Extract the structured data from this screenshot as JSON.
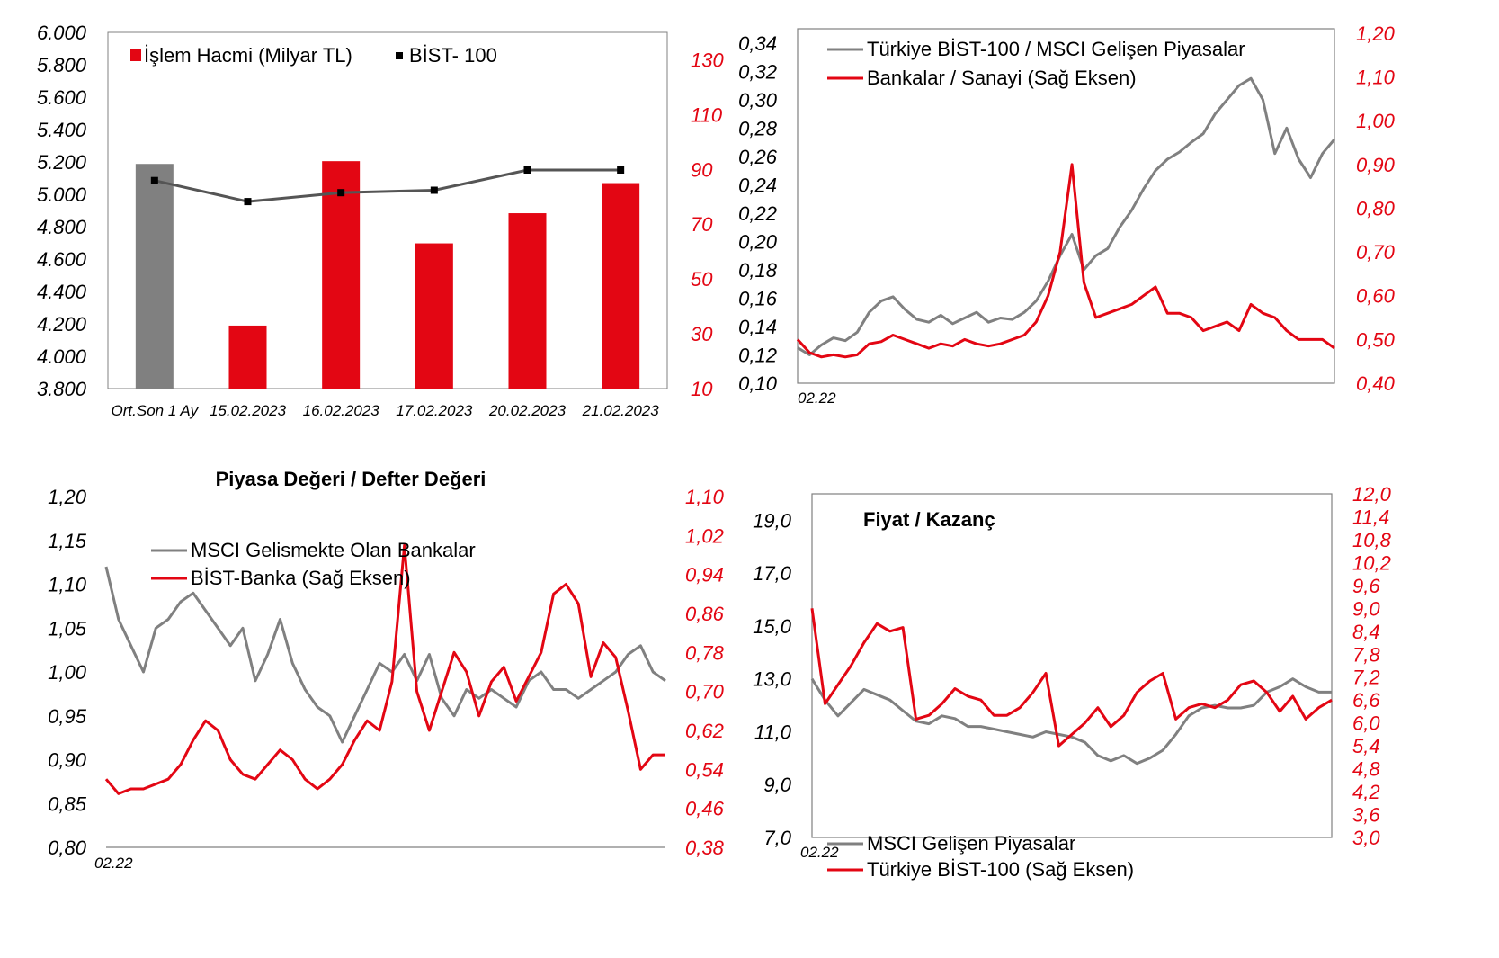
{
  "colors": {
    "red": "#e30613",
    "gray": "#808080",
    "dark": "#555555",
    "black": "#000000"
  },
  "chart_data": [
    {
      "id": "volume",
      "type": "bar",
      "title": "",
      "categories": [
        "Ort.Son 1 Ay",
        "15.02.2023",
        "16.02.2023",
        "17.02.2023",
        "20.02.2023",
        "21.02.2023"
      ],
      "series": [
        {
          "name": "İşlem Hacmi (Milyar TL)",
          "axis": "right",
          "type": "bar",
          "values": [
            92,
            33,
            93,
            63,
            74,
            85
          ]
        },
        {
          "name": "BİST- 100",
          "axis": "left",
          "type": "line",
          "values": [
            5085,
            4955,
            5010,
            5025,
            5150,
            5150
          ]
        }
      ],
      "y_left": {
        "range": [
          3800,
          6000
        ],
        "ticks": [
          "3.800",
          "4.000",
          "4.200",
          "4.400",
          "4.600",
          "4.800",
          "5.000",
          "5.200",
          "5.400",
          "5.600",
          "5.800",
          "6.000"
        ]
      },
      "y_right": {
        "range": [
          10,
          140
        ],
        "ticks": [
          "10",
          "30",
          "50",
          "70",
          "90",
          "110",
          "130"
        ]
      },
      "legend": "top-left"
    },
    {
      "id": "ratio",
      "type": "line",
      "title": "",
      "x_label_first": "02.22",
      "series": [
        {
          "name": "Türkiye BİST-100 / MSCI Gelişen Piyasalar",
          "axis": "left",
          "color": "gray",
          "values": [
            0.125,
            0.12,
            0.127,
            0.132,
            0.13,
            0.136,
            0.15,
            0.158,
            0.161,
            0.152,
            0.145,
            0.143,
            0.148,
            0.142,
            0.146,
            0.15,
            0.143,
            0.146,
            0.145,
            0.15,
            0.158,
            0.172,
            0.19,
            0.205,
            0.18,
            0.19,
            0.195,
            0.21,
            0.222,
            0.237,
            0.25,
            0.258,
            0.263,
            0.27,
            0.276,
            0.29,
            0.3,
            0.31,
            0.315,
            0.3,
            0.262,
            0.28,
            0.258,
            0.245,
            0.262,
            0.272
          ]
        },
        {
          "name": "Bankalar / Sanayi (Sağ Eksen)",
          "axis": "right",
          "color": "red",
          "values": [
            0.5,
            0.47,
            0.46,
            0.465,
            0.46,
            0.465,
            0.49,
            0.495,
            0.51,
            0.5,
            0.49,
            0.48,
            0.49,
            0.485,
            0.5,
            0.49,
            0.485,
            0.49,
            0.5,
            0.51,
            0.54,
            0.6,
            0.7,
            0.9,
            0.63,
            0.55,
            0.56,
            0.57,
            0.58,
            0.6,
            0.62,
            0.56,
            0.56,
            0.55,
            0.52,
            0.53,
            0.54,
            0.52,
            0.58,
            0.56,
            0.55,
            0.52,
            0.5,
            0.5,
            0.5,
            0.48
          ]
        }
      ],
      "y_left": {
        "range": [
          0.1,
          0.35
        ],
        "ticks": [
          "0,10",
          "0,12",
          "0,14",
          "0,16",
          "0,18",
          "0,20",
          "0,22",
          "0,24",
          "0,26",
          "0,28",
          "0,30",
          "0,32",
          "0,34"
        ]
      },
      "y_right": {
        "range": [
          0.4,
          1.21
        ],
        "ticks": [
          "0,40",
          "0,50",
          "0,60",
          "0,70",
          "0,80",
          "0,90",
          "1,00",
          "1,10",
          "1,20"
        ]
      },
      "legend": "top-left"
    },
    {
      "id": "pbv",
      "type": "line",
      "title": "Piyasa Değeri / Defter Değeri",
      "x_label_first": "02.22",
      "series": [
        {
          "name": "MSCI Gelismekte Olan Bankalar",
          "axis": "left",
          "color": "gray",
          "values": [
            1.12,
            1.06,
            1.03,
            1.0,
            1.05,
            1.06,
            1.08,
            1.09,
            1.07,
            1.05,
            1.03,
            1.05,
            0.99,
            1.02,
            1.06,
            1.01,
            0.98,
            0.96,
            0.95,
            0.92,
            0.95,
            0.98,
            1.01,
            1.0,
            1.02,
            0.99,
            1.02,
            0.97,
            0.95,
            0.98,
            0.97,
            0.98,
            0.97,
            0.96,
            0.99,
            1.0,
            0.98,
            0.98,
            0.97,
            0.98,
            0.99,
            1.0,
            1.02,
            1.03,
            1.0,
            0.99
          ]
        },
        {
          "name": "BİST-Banka (Sağ Eksen)",
          "axis": "right",
          "color": "red",
          "values": [
            0.52,
            0.49,
            0.5,
            0.5,
            0.51,
            0.52,
            0.55,
            0.6,
            0.64,
            0.62,
            0.56,
            0.53,
            0.52,
            0.55,
            0.58,
            0.56,
            0.52,
            0.5,
            0.52,
            0.55,
            0.6,
            0.64,
            0.62,
            0.72,
            1.0,
            0.7,
            0.62,
            0.7,
            0.78,
            0.74,
            0.65,
            0.72,
            0.75,
            0.68,
            0.73,
            0.78,
            0.9,
            0.92,
            0.88,
            0.73,
            0.8,
            0.77,
            0.66,
            0.54,
            0.57,
            0.57
          ]
        }
      ],
      "y_left": {
        "range": [
          0.8,
          1.2
        ],
        "ticks": [
          "0,80",
          "0,85",
          "0,90",
          "0,95",
          "1,00",
          "1,05",
          "1,10",
          "1,15",
          "1,20"
        ]
      },
      "y_right": {
        "range": [
          0.38,
          1.1
        ],
        "ticks": [
          "0,38",
          "0,46",
          "0,54",
          "0,62",
          "0,70",
          "0,78",
          "0,86",
          "0,94",
          "1,02",
          "1,10"
        ]
      },
      "legend": "top-left"
    },
    {
      "id": "pe",
      "type": "line",
      "title": "Fiyat / Kazanç",
      "x_label_first": "02.22",
      "series": [
        {
          "name": "MSCI Gelişen Piyasalar",
          "axis": "left",
          "color": "gray",
          "values": [
            13.0,
            12.2,
            11.6,
            12.1,
            12.6,
            12.4,
            12.2,
            11.8,
            11.4,
            11.3,
            11.6,
            11.5,
            11.2,
            11.2,
            11.1,
            11.0,
            10.9,
            10.8,
            11.0,
            10.9,
            10.8,
            10.6,
            10.1,
            9.9,
            10.1,
            9.8,
            10.0,
            10.3,
            10.9,
            11.6,
            11.9,
            12.0,
            11.9,
            11.9,
            12.0,
            12.5,
            12.7,
            13.0,
            12.7,
            12.5,
            12.5
          ]
        },
        {
          "name": "Türkiye BİST-100 (Sağ Eksen)",
          "axis": "right",
          "color": "red",
          "values": [
            9.0,
            6.5,
            7.0,
            7.5,
            8.1,
            8.6,
            8.4,
            8.5,
            6.1,
            6.2,
            6.5,
            6.9,
            6.7,
            6.6,
            6.2,
            6.2,
            6.4,
            6.8,
            7.3,
            5.4,
            5.7,
            6.0,
            6.4,
            5.9,
            6.2,
            6.8,
            7.1,
            7.3,
            6.1,
            6.4,
            6.5,
            6.4,
            6.6,
            7.0,
            7.1,
            6.8,
            6.3,
            6.7,
            6.1,
            6.4,
            6.6
          ]
        }
      ],
      "y_left": {
        "range": [
          7.0,
          20.0
        ],
        "ticks": [
          "7,0",
          "9,0",
          "11,0",
          "13,0",
          "15,0",
          "17,0",
          "19,0"
        ]
      },
      "y_right": {
        "range": [
          3.0,
          12.0
        ],
        "ticks": [
          "3,0",
          "3,6",
          "4,2",
          "4,8",
          "5,4",
          "6,0",
          "6,6",
          "7,2",
          "7,8",
          "8,4",
          "9,0",
          "9,6",
          "10,2",
          "10,8",
          "11,4",
          "12,0"
        ]
      },
      "legend": "bottom-left"
    }
  ]
}
